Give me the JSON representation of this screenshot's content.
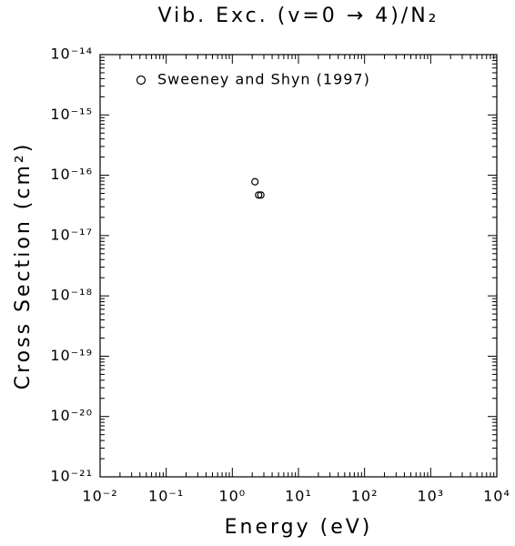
{
  "chart_data": {
    "type": "scatter",
    "title": "Vib. Exc. (v=0 → 4)/N₂",
    "x_label": "Energy (eV)",
    "y_label": "Cross Section (cm²)",
    "log_x": true,
    "log_y": true,
    "xlim": [
      0.01,
      10000
    ],
    "ylim": [
      1e-21,
      1e-14
    ],
    "xticks": [
      {
        "value": 0.01,
        "label": "10⁻²"
      },
      {
        "value": 0.1,
        "label": "10⁻¹"
      },
      {
        "value": 1,
        "label": "10⁰"
      },
      {
        "value": 10,
        "label": "10¹"
      },
      {
        "value": 100,
        "label": "10²"
      },
      {
        "value": 1000,
        "label": "10³"
      },
      {
        "value": 10000,
        "label": "10⁴"
      }
    ],
    "yticks": [
      {
        "value": 1e-21,
        "label": "10⁻²¹"
      },
      {
        "value": 1e-20,
        "label": "10⁻²⁰"
      },
      {
        "value": 1e-19,
        "label": "10⁻¹⁹"
      },
      {
        "value": 1e-18,
        "label": "10⁻¹⁸"
      },
      {
        "value": 1e-17,
        "label": "10⁻¹⁷"
      },
      {
        "value": 1e-16,
        "label": "10⁻¹⁶"
      },
      {
        "value": 1e-15,
        "label": "10⁻¹⁵"
      },
      {
        "value": 1e-14,
        "label": "10⁻¹⁴"
      }
    ],
    "legend": "upper left",
    "series": [
      {
        "name": "Sweeney and Shyn (1997)",
        "color": "#000000",
        "x": [
          2.2,
          2.5,
          2.7
        ],
        "values": [
          7.8e-17,
          4.7e-17,
          4.7e-17
        ]
      }
    ]
  }
}
